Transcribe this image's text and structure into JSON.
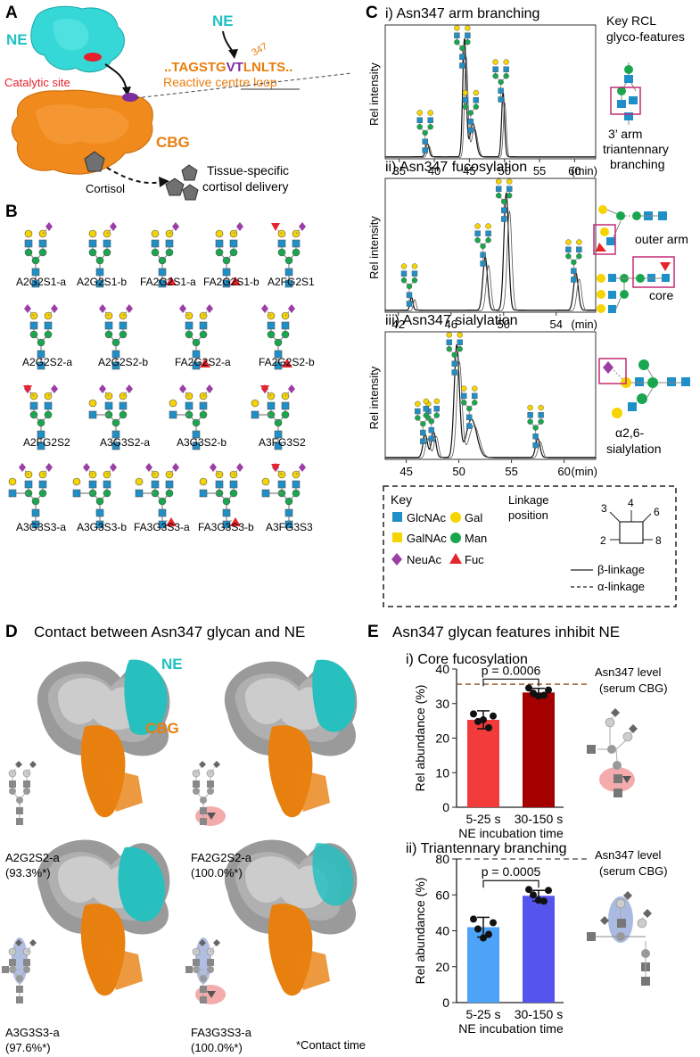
{
  "panel_letters": {
    "a": "A",
    "b": "B",
    "c": "C",
    "d": "D",
    "e": "E"
  },
  "panelA": {
    "ne_label": "NE",
    "catalytic_site": "Catalytic site",
    "ne_arrow_label": "NE",
    "rcl_sequence": {
      "pre": "..TAGSTG",
      "vt": "VT",
      "post": "LNLTS.."
    },
    "rcl_position": "347",
    "rcl_label": "Reactive centre loop",
    "cbg_label": "CBG",
    "cortisol_label": "Cortisol",
    "delivery_line1": "Tissue-specific",
    "delivery_line2": "cortisol delivery"
  },
  "panelB": {
    "glycans": [
      "A2G2S1-a",
      "A2G2S1-b",
      "FA2G2S1-a",
      "FA2G2S1-b",
      "A2FG2S1",
      "A2G2S2-a",
      "A2G2S2-b",
      "FA2G2S2-a",
      "FA2G2S2-b",
      "A2FG2S2",
      "A3G3S2-a",
      "A3G3S2-b",
      "A3FG3S2",
      "A3G3S3-a",
      "A3G3S3-b",
      "FA3G3S3-a",
      "FA3G3S3-b",
      "A3FG3S3"
    ]
  },
  "panelC": {
    "key_title_line1": "Key RCL",
    "key_title_line2": "glyco-features",
    "ylabel": "Rel intensity",
    "xunit": "(min)",
    "plots": [
      {
        "title": "i) Asn347 arm branching",
        "ticks": [
          "35",
          "40",
          "45",
          "50",
          "55",
          "60"
        ],
        "features": [
          "3’ arm",
          "triantennary",
          "branching"
        ]
      },
      {
        "title": "ii) Asn347 fucosylation",
        "ticks": [
          "42",
          "46",
          "50",
          "54"
        ],
        "features": [
          "outer arm",
          "core"
        ]
      },
      {
        "title": "iii) Asn347 sialylation",
        "ticks": [
          "45",
          "50",
          "55",
          "60"
        ],
        "features": [
          "α2,6-",
          "sialylation"
        ]
      }
    ],
    "key": {
      "title": "Key",
      "glcnac": "GlcNAc",
      "gal": "Gal",
      "galnac": "GalNAc",
      "man": "Man",
      "neuac": "NeuAc",
      "fuc": "Fuc",
      "linkage_title_line1": "Linkage",
      "linkage_title_line2": "position",
      "pos3": "3",
      "pos4": "4",
      "pos6": "6",
      "pos2": "2",
      "pos8": "8",
      "beta": "β-linkage",
      "alpha": "α-linkage"
    }
  },
  "panelD": {
    "title": "Contact between Asn347 glycan and NE",
    "ne_label": "NE",
    "cbg_label": "CBG",
    "models": [
      {
        "name": "A2G2S2-a",
        "contact": "(93.3%*)"
      },
      {
        "name": "FA2G2S2-a",
        "contact": "(100.0%*)"
      },
      {
        "name": "A3G3S3-a",
        "contact": "(97.6%*)"
      },
      {
        "name": "FA3G3S3-a",
        "contact": "(100.0%*)"
      }
    ],
    "footnote": "*Contact time"
  },
  "panelE": {
    "title": "Asn347 glycan features inhibit NE",
    "charts": [
      {
        "title": "i) Core fucosylation",
        "ylabel": "Rel abundance (%)",
        "xlabel": "NE incubation time",
        "ref_label_line1": "Asn347 level",
        "ref_label_line2": "(serum CBG)",
        "pvalue": "p = 0.0006",
        "ticks": [
          "0",
          "10",
          "20",
          "30",
          "40"
        ]
      },
      {
        "title": "ii) Triantennary branching",
        "ylabel": "Rel abundance (%)",
        "xlabel": "NE incubation time",
        "ref_label_line1": "Asn347 level",
        "ref_label_line2": "(serum CBG)",
        "pvalue": "p = 0.0005",
        "ticks": [
          "0",
          "20",
          "40",
          "60",
          "80"
        ]
      }
    ]
  },
  "chart_data": [
    {
      "type": "bar",
      "title": "i) Core fucosylation",
      "categories": [
        "5-25 s",
        "30-150 s"
      ],
      "values": [
        25.3,
        33.2
      ],
      "errors": [
        2.6,
        1.2
      ],
      "points": [
        [
          27.0,
          26.4,
          24.8,
          23.0,
          25.3
        ],
        [
          34.5,
          33.9,
          33.0,
          32.4,
          32.2
        ]
      ],
      "bar_colors": [
        "#f23b3b",
        "#a50000"
      ],
      "reference": 35.6,
      "xlabel": "NE incubation time",
      "ylabel": "Rel abundance (%)",
      "ylim": [
        0,
        40
      ]
    },
    {
      "type": "bar",
      "title": "ii) Triantennary branching",
      "categories": [
        "5-25 s",
        "30-150 s"
      ],
      "values": [
        42.0,
        59.5
      ],
      "errors": [
        5.5,
        3.0
      ],
      "points": [
        [
          46.5,
          44.5,
          41.0,
          38.0,
          36.0
        ],
        [
          63.0,
          62.5,
          60.0,
          56.5,
          57.0
        ]
      ],
      "bar_colors": [
        "#4da3f7",
        "#5555ee"
      ],
      "reference": 80,
      "xlabel": "NE incubation time",
      "ylabel": "Rel abundance (%)",
      "ylim": [
        0,
        80
      ]
    }
  ]
}
